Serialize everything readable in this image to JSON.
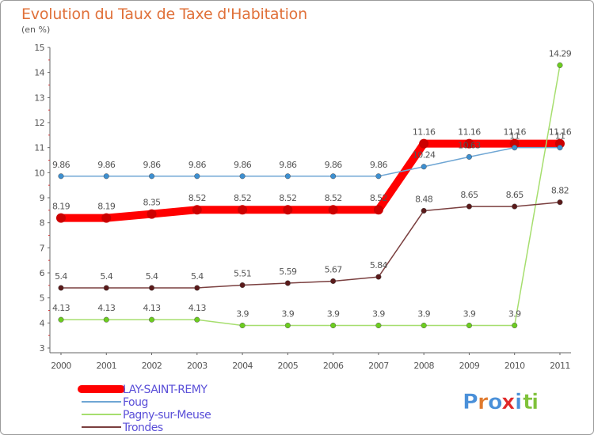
{
  "chart_data": {
    "type": "line",
    "title": "Evolution du Taux de Taxe d'Habitation",
    "subtitle": "(en %)",
    "xlabel": "",
    "ylabel": "",
    "ylim": [
      3,
      15
    ],
    "yticks": [
      "3",
      "4",
      "5",
      "6",
      "7",
      "8",
      "9",
      "10",
      "11",
      "12",
      "13",
      "14",
      "15"
    ],
    "categories": [
      "2000",
      "2001",
      "2002",
      "2003",
      "2004",
      "2005",
      "2006",
      "2007",
      "2008",
      "2009",
      "2010",
      "2011"
    ],
    "grid": false,
    "legend_position": "bottom-left",
    "series": [
      {
        "name": "LAY-SAINT-REMY",
        "color": "#ff0000",
        "marker_color": "#cc0000",
        "values": [
          8.19,
          8.19,
          8.35,
          8.52,
          8.52,
          8.52,
          8.52,
          8.52,
          11.16,
          11.16,
          11.16,
          11.16
        ],
        "labels": [
          "8.19",
          "8.19",
          "8.35",
          "8.52",
          "8.52",
          "8.52",
          "8.52",
          "8.52",
          "11.16",
          "11.16",
          "11.16",
          "11.16"
        ]
      },
      {
        "name": "Foug",
        "color": "#6fa6d4",
        "marker_color": "#3d8fd0",
        "values": [
          9.86,
          9.86,
          9.86,
          9.86,
          9.86,
          9.86,
          9.86,
          9.86,
          10.24,
          10.63,
          11,
          11
        ],
        "labels": [
          "9.86",
          "9.86",
          "9.86",
          "9.86",
          "9.86",
          "9.86",
          "9.86",
          "9.86",
          "10.24",
          "10.63",
          "11",
          "11"
        ]
      },
      {
        "name": "Pagny-sur-Meuse",
        "color": "#a6de6e",
        "marker_color": "#6ccd1f",
        "values": [
          4.13,
          4.13,
          4.13,
          4.13,
          3.9,
          3.9,
          3.9,
          3.9,
          3.9,
          3.9,
          3.9,
          14.29
        ],
        "labels": [
          "4.13",
          "4.13",
          "4.13",
          "4.13",
          "3.9",
          "3.9",
          "3.9",
          "3.9",
          "3.9",
          "3.9",
          "3.9",
          "14.29"
        ]
      },
      {
        "name": "Trondes",
        "color": "#7a3f3f",
        "marker_color": "#5a1a1a",
        "values": [
          5.4,
          5.4,
          5.4,
          5.4,
          5.51,
          5.59,
          5.67,
          5.84,
          8.48,
          8.65,
          8.65,
          8.82
        ],
        "labels": [
          "5.4",
          "5.4",
          "5.4",
          "5.4",
          "5.51",
          "5.59",
          "5.67",
          "5.84",
          "8.48",
          "8.65",
          "8.65",
          "8.82"
        ]
      }
    ]
  },
  "branding": {
    "logo_letters": [
      "P",
      "r",
      "o",
      "x",
      "i",
      "t",
      "i"
    ],
    "logo_colors": [
      "#4a90d9",
      "#e07a2e",
      "#4a90d9",
      "#e02828",
      "#4a90d9",
      "#7fc23a",
      "#7fc23a"
    ]
  }
}
